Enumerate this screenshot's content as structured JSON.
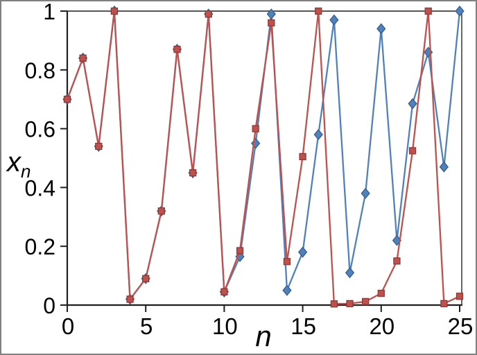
{
  "window": {
    "background": "#ffffff",
    "border_color": "#808080"
  },
  "chart_data": {
    "type": "line",
    "title": "",
    "xlabel": "n",
    "ylabel_base": "x",
    "ylabel_sub": "n",
    "xlim": [
      0,
      25
    ],
    "ylim": [
      0,
      1
    ],
    "xticks": [
      0,
      5,
      10,
      15,
      20,
      25
    ],
    "xtick_labels": [
      "0",
      "5",
      "10",
      "15",
      "20",
      "25"
    ],
    "yticks": [
      0,
      0.2,
      0.4,
      0.6,
      0.8,
      1
    ],
    "ytick_labels": [
      "0",
      "0.2",
      "0.4",
      "0.6",
      "0.8",
      "1"
    ],
    "grid": false,
    "legend": false,
    "axis_color": "#1f1f1f",
    "x": [
      0,
      1,
      2,
      3,
      4,
      5,
      6,
      7,
      8,
      9,
      10,
      11,
      12,
      13,
      14,
      15,
      16,
      17,
      18,
      19,
      20,
      21,
      22,
      23,
      24,
      25
    ],
    "series": [
      {
        "name": "series-blue-diamond",
        "marker": "diamond",
        "line_color": "#4F81BD",
        "marker_fill": "#4F81BD",
        "marker_border": "#385D8A",
        "values": [
          0.7,
          0.84,
          0.54,
          1.0,
          0.02,
          0.09,
          0.32,
          0.87,
          0.45,
          0.99,
          0.045,
          0.165,
          0.55,
          0.99,
          0.05,
          0.18,
          0.58,
          0.97,
          0.11,
          0.38,
          0.94,
          0.22,
          0.685,
          0.86,
          0.47,
          1.0
        ]
      },
      {
        "name": "series-red-square",
        "marker": "square",
        "line_color": "#C0504D",
        "marker_fill": "#C0504D",
        "marker_border": "#8C3A36",
        "values": [
          0.7,
          0.84,
          0.54,
          1.0,
          0.02,
          0.09,
          0.32,
          0.87,
          0.45,
          0.99,
          0.045,
          0.185,
          0.6,
          0.96,
          0.148,
          0.505,
          1.0,
          0.004,
          0.005,
          0.012,
          0.04,
          0.15,
          0.525,
          1.0,
          0.005,
          0.03
        ]
      }
    ]
  }
}
